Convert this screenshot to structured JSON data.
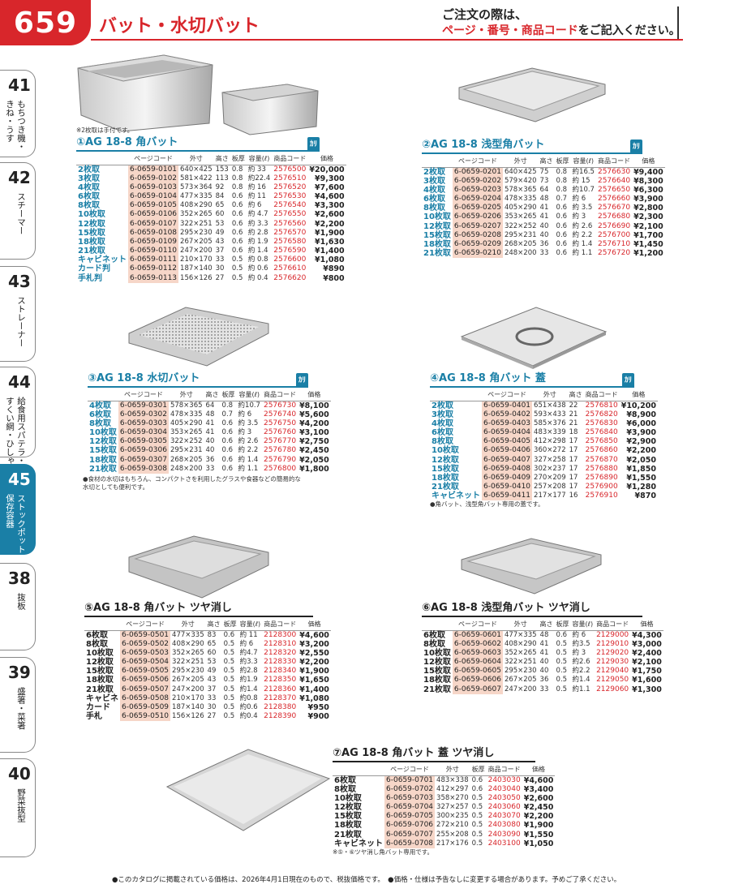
{
  "header": {
    "page_number": "659",
    "title": "バット・水切バット",
    "note_line1": "ご注文の際は、",
    "note_red": "ページ・番号・商品コード",
    "note_tail": "をご記入ください。"
  },
  "side_tabs": [
    {
      "num": "41",
      "text1": "もちつき機・",
      "text2": "きね・うす"
    },
    {
      "num": "42",
      "text1": "スチーマー",
      "text2": ""
    },
    {
      "num": "43",
      "text1": "ストレーナー",
      "text2": ""
    },
    {
      "num": "44",
      "text1": "給食用スパテラ・",
      "text2": "すくい網・ひしゃく"
    },
    {
      "num": "45",
      "text1": "ストックポット・",
      "text2": "保存容器"
    },
    {
      "num": "38",
      "text1": "抜板",
      "text2": ""
    },
    {
      "num": "39",
      "text1": "盛箸・菜箸",
      "text2": ""
    },
    {
      "num": "40",
      "text1": "野菜抜型",
      "text2": ""
    }
  ],
  "headers": {
    "code": "ページコード",
    "size": "外寸",
    "height": "高さ",
    "thick": "板厚",
    "cap": "容量(ℓ)",
    "pcode": "商品コード",
    "price": "価格"
  },
  "ka_label": "ｶﾘ",
  "s1": {
    "title": "①AG 18-8 角バット",
    "photo_note": "※2枚取は手付です。",
    "rows": [
      [
        "2枚取",
        "6-0659-0101",
        "640×425",
        "153",
        "0.8",
        "約 33",
        "2576500",
        "¥20,000"
      ],
      [
        "3枚取",
        "6-0659-0102",
        "581×422",
        "113",
        "0.8",
        "約22.4",
        "2576510",
        "¥9,300"
      ],
      [
        "4枚取",
        "6-0659-0103",
        "573×364",
        "92",
        "0.8",
        "約 16",
        "2576520",
        "¥7,600"
      ],
      [
        "6枚取",
        "6-0659-0104",
        "477×335",
        "84",
        "0.6",
        "約 11",
        "2576530",
        "¥4,600"
      ],
      [
        "8枚取",
        "6-0659-0105",
        "408×290",
        "65",
        "0.6",
        "約 6",
        "2576540",
        "¥3,300"
      ],
      [
        "10枚取",
        "6-0659-0106",
        "352×265",
        "60",
        "0.6",
        "約 4.7",
        "2576550",
        "¥2,600"
      ],
      [
        "12枚取",
        "6-0659-0107",
        "322×251",
        "53",
        "0.6",
        "約 3.3",
        "2576560",
        "¥2,200"
      ],
      [
        "15枚取",
        "6-0659-0108",
        "295×230",
        "49",
        "0.6",
        "約 2.8",
        "2576570",
        "¥1,900"
      ],
      [
        "18枚取",
        "6-0659-0109",
        "267×205",
        "43",
        "0.6",
        "約 1.9",
        "2576580",
        "¥1,630"
      ],
      [
        "21枚取",
        "6-0659-0110",
        "247×200",
        "37",
        "0.6",
        "約 1.4",
        "2576590",
        "¥1,400"
      ],
      [
        "キャビネット",
        "6-0659-0111",
        "210×170",
        "33",
        "0.5",
        "約 0.8",
        "2576600",
        "¥1,080"
      ],
      [
        "カード判",
        "6-0659-0112",
        "187×140",
        "30",
        "0.5",
        "約 0.6",
        "2576610",
        "¥890"
      ],
      [
        "手札判",
        "6-0659-0113",
        "156×126",
        "27",
        "0.5",
        "約 0.4",
        "2576620",
        "¥800"
      ]
    ]
  },
  "s2": {
    "title": "②AG 18-8 浅型角バット",
    "rows": [
      [
        "2枚取",
        "6-0659-0201",
        "640×425",
        "75",
        "0.8",
        "約16.5",
        "2576630",
        "¥9,400"
      ],
      [
        "3枚取",
        "6-0659-0202",
        "579×420",
        "73",
        "0.8",
        "約 15",
        "2576640",
        "¥8,300"
      ],
      [
        "4枚取",
        "6-0659-0203",
        "578×365",
        "64",
        "0.8",
        "約10.7",
        "2576650",
        "¥6,300"
      ],
      [
        "6枚取",
        "6-0659-0204",
        "478×335",
        "48",
        "0.7",
        "約 6",
        "2576660",
        "¥3,900"
      ],
      [
        "8枚取",
        "6-0659-0205",
        "405×290",
        "41",
        "0.6",
        "約 3.5",
        "2576670",
        "¥2,800"
      ],
      [
        "10枚取",
        "6-0659-0206",
        "353×265",
        "41",
        "0.6",
        "約 3",
        "2576680",
        "¥2,300"
      ],
      [
        "12枚取",
        "6-0659-0207",
        "322×252",
        "40",
        "0.6",
        "約 2.6",
        "2576690",
        "¥2,100"
      ],
      [
        "15枚取",
        "6-0659-0208",
        "295×231",
        "40",
        "0.6",
        "約 2.2",
        "2576700",
        "¥1,700"
      ],
      [
        "18枚取",
        "6-0659-0209",
        "268×205",
        "36",
        "0.6",
        "約 1.4",
        "2576710",
        "¥1,450"
      ],
      [
        "21枚取",
        "6-0659-0210",
        "248×200",
        "33",
        "0.6",
        "約 1.1",
        "2576720",
        "¥1,200"
      ]
    ]
  },
  "s3": {
    "title": "③AG 18-8 水切バット",
    "note1": "●食材の水切はもちろん、コンパクトさを利用したグラスや食器などの簡易的な水切としても便利です。",
    "rows": [
      [
        "4枚取",
        "6-0659-0301",
        "578×365",
        "64",
        "0.8",
        "約10.7",
        "2576730",
        "¥8,100"
      ],
      [
        "6枚取",
        "6-0659-0302",
        "478×335",
        "48",
        "0.7",
        "約 6",
        "2576740",
        "¥5,600"
      ],
      [
        "8枚取",
        "6-0659-0303",
        "405×290",
        "41",
        "0.6",
        "約 3.5",
        "2576750",
        "¥4,200"
      ],
      [
        "10枚取",
        "6-0659-0304",
        "353×265",
        "41",
        "0.6",
        "約 3",
        "2576760",
        "¥3,100"
      ],
      [
        "12枚取",
        "6-0659-0305",
        "322×252",
        "40",
        "0.6",
        "約 2.6",
        "2576770",
        "¥2,750"
      ],
      [
        "15枚取",
        "6-0659-0306",
        "295×231",
        "40",
        "0.6",
        "約 2.2",
        "2576780",
        "¥2,450"
      ],
      [
        "18枚取",
        "6-0659-0307",
        "268×205",
        "36",
        "0.6",
        "約 1.4",
        "2576790",
        "¥2,050"
      ],
      [
        "21枚取",
        "6-0659-0308",
        "248×200",
        "33",
        "0.6",
        "約 1.1",
        "2576800",
        "¥1,800"
      ]
    ]
  },
  "s4": {
    "title": "④AG 18-8 角バット 蓋",
    "note": "●角バット、浅型角バット専用の蓋です。",
    "rows": [
      [
        "2枚取",
        "6-0659-0401",
        "651×438",
        "22",
        "2576810",
        "¥10,200"
      ],
      [
        "3枚取",
        "6-0659-0402",
        "593×433",
        "21",
        "2576820",
        "¥8,900"
      ],
      [
        "4枚取",
        "6-0659-0403",
        "585×376",
        "21",
        "2576830",
        "¥6,000"
      ],
      [
        "6枚取",
        "6-0659-0404",
        "483×339",
        "18",
        "2576840",
        "¥3,900"
      ],
      [
        "8枚取",
        "6-0659-0405",
        "412×298",
        "17",
        "2576850",
        "¥2,900"
      ],
      [
        "10枚取",
        "6-0659-0406",
        "360×272",
        "17",
        "2576860",
        "¥2,200"
      ],
      [
        "12枚取",
        "6-0659-0407",
        "327×258",
        "17",
        "2576870",
        "¥2,050"
      ],
      [
        "15枚取",
        "6-0659-0408",
        "302×237",
        "17",
        "2576880",
        "¥1,850"
      ],
      [
        "18枚取",
        "6-0659-0409",
        "270×209",
        "17",
        "2576890",
        "¥1,550"
      ],
      [
        "21枚取",
        "6-0659-0410",
        "257×208",
        "17",
        "2576900",
        "¥1,280"
      ],
      [
        "キャビネット",
        "6-0659-0411",
        "217×177",
        "16",
        "2576910",
        "¥870"
      ]
    ]
  },
  "s5": {
    "title": "⑤AG 18-8 角バット ツヤ消し",
    "rows": [
      [
        "6枚取",
        "6-0659-0501",
        "477×335",
        "83",
        "0.6",
        "約 11",
        "2128300",
        "¥4,600"
      ],
      [
        "8枚取",
        "6-0659-0502",
        "408×290",
        "65",
        "0.5",
        "約 6",
        "2128310",
        "¥3,200"
      ],
      [
        "10枚取",
        "6-0659-0503",
        "352×265",
        "60",
        "0.5",
        "約4.7",
        "2128320",
        "¥2,550"
      ],
      [
        "12枚取",
        "6-0659-0504",
        "322×251",
        "53",
        "0.5",
        "約3.3",
        "2128330",
        "¥2,200"
      ],
      [
        "15枚取",
        "6-0659-0505",
        "295×230",
        "49",
        "0.5",
        "約2.8",
        "2128340",
        "¥1,900"
      ],
      [
        "18枚取",
        "6-0659-0506",
        "267×205",
        "43",
        "0.5",
        "約1.9",
        "2128350",
        "¥1,650"
      ],
      [
        "21枚取",
        "6-0659-0507",
        "247×200",
        "37",
        "0.5",
        "約1.4",
        "2128360",
        "¥1,400"
      ],
      [
        "キャビネ",
        "6-0659-0508",
        "210×170",
        "33",
        "0.5",
        "約0.8",
        "2128370",
        "¥1,080"
      ],
      [
        "カード",
        "6-0659-0509",
        "187×140",
        "30",
        "0.5",
        "約0.6",
        "2128380",
        "¥950"
      ],
      [
        "手札",
        "6-0659-0510",
        "156×126",
        "27",
        "0.5",
        "約0.4",
        "2128390",
        "¥900"
      ]
    ]
  },
  "s6": {
    "title": "⑥AG 18-8 浅型角バット ツヤ消し",
    "rows": [
      [
        "6枚取",
        "6-0659-0601",
        "477×335",
        "48",
        "0.6",
        "約 6",
        "2129000",
        "¥4,300"
      ],
      [
        "8枚取",
        "6-0659-0602",
        "408×290",
        "41",
        "0.5",
        "約3.5",
        "2129010",
        "¥3,000"
      ],
      [
        "10枚取",
        "6-0659-0603",
        "352×265",
        "41",
        "0.5",
        "約 3",
        "2129020",
        "¥2,400"
      ],
      [
        "12枚取",
        "6-0659-0604",
        "322×251",
        "40",
        "0.5",
        "約2.6",
        "2129030",
        "¥2,100"
      ],
      [
        "15枚取",
        "6-0659-0605",
        "295×230",
        "40",
        "0.5",
        "約2.2",
        "2129040",
        "¥1,750"
      ],
      [
        "18枚取",
        "6-0659-0606",
        "267×205",
        "36",
        "0.5",
        "約1.4",
        "2129050",
        "¥1,600"
      ],
      [
        "21枚取",
        "6-0659-0607",
        "247×200",
        "33",
        "0.5",
        "約1.1",
        "2129060",
        "¥1,300"
      ]
    ]
  },
  "s7": {
    "title": "⑦AG 18-8 角バット 蓋 ツヤ消し",
    "note": "※⑤・⑥ツヤ消し角バット専用です。",
    "rows": [
      [
        "6枚取",
        "6-0659-0701",
        "483×338",
        "0.6",
        "2403030",
        "¥4,600"
      ],
      [
        "8枚取",
        "6-0659-0702",
        "412×297",
        "0.6",
        "2403040",
        "¥3,400"
      ],
      [
        "10枚取",
        "6-0659-0703",
        "358×270",
        "0.5",
        "2403050",
        "¥2,600"
      ],
      [
        "12枚取",
        "6-0659-0704",
        "327×257",
        "0.5",
        "2403060",
        "¥2,450"
      ],
      [
        "15枚取",
        "6-0659-0705",
        "300×235",
        "0.5",
        "2403070",
        "¥2,200"
      ],
      [
        "18枚取",
        "6-0659-0706",
        "272×210",
        "0.5",
        "2403080",
        "¥1,900"
      ],
      [
        "21枚取",
        "6-0659-0707",
        "255×208",
        "0.5",
        "2403090",
        "¥1,550"
      ],
      [
        "キャビネット",
        "6-0659-0708",
        "217×176",
        "0.5",
        "2403100",
        "¥1,050"
      ]
    ]
  },
  "footer": "●このカタログに掲載されている価格は、2026年4月1日現在のもので、税抜価格です。　●価格・仕様は予告なしに変更する場合があります。予めご了承ください。"
}
